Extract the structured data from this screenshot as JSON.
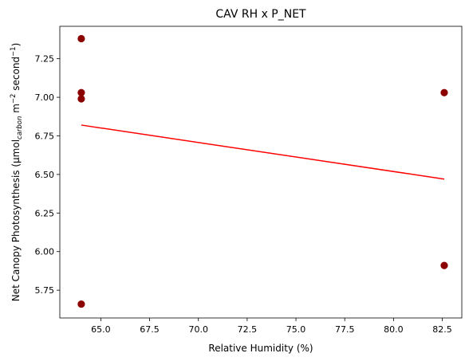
{
  "chart_data": {
    "type": "scatter",
    "title": "CAV RH x P_NET",
    "xlabel": "Relative Humidity (%)",
    "ylabel": {
      "parts": [
        {
          "text": "Net Canopy Photosynthesis (µmol"
        },
        {
          "text": "carbon",
          "style": "sub-italic"
        },
        {
          "text": " m"
        },
        {
          "text": "−2",
          "style": "sup"
        },
        {
          "text": " second"
        },
        {
          "text": "−1",
          "style": "sup"
        },
        {
          "text": ")"
        }
      ]
    },
    "xlim": [
      62.9,
      83.5
    ],
    "ylim": [
      5.57,
      7.46
    ],
    "xticks": [
      65.0,
      67.5,
      70.0,
      72.5,
      75.0,
      77.5,
      80.0,
      82.5
    ],
    "xtick_labels": [
      "65.0",
      "67.5",
      "70.0",
      "72.5",
      "75.0",
      "77.5",
      "80.0",
      "82.5"
    ],
    "yticks": [
      5.75,
      6.0,
      6.25,
      6.5,
      6.75,
      7.0,
      7.25
    ],
    "ytick_labels": [
      "5.75",
      "6.00",
      "6.25",
      "6.50",
      "6.75",
      "7.00",
      "7.25"
    ],
    "points": [
      {
        "x": 64.0,
        "y": 7.38
      },
      {
        "x": 64.0,
        "y": 7.03
      },
      {
        "x": 64.0,
        "y": 6.99
      },
      {
        "x": 64.0,
        "y": 5.66
      },
      {
        "x": 82.6,
        "y": 7.03
      },
      {
        "x": 82.6,
        "y": 5.91
      }
    ],
    "fit_line": {
      "x": [
        64.0,
        82.6
      ],
      "y": [
        6.82,
        6.47
      ]
    },
    "point_color": "#8b0000",
    "line_color": "#ff0000",
    "grid": false,
    "legend": "none"
  }
}
